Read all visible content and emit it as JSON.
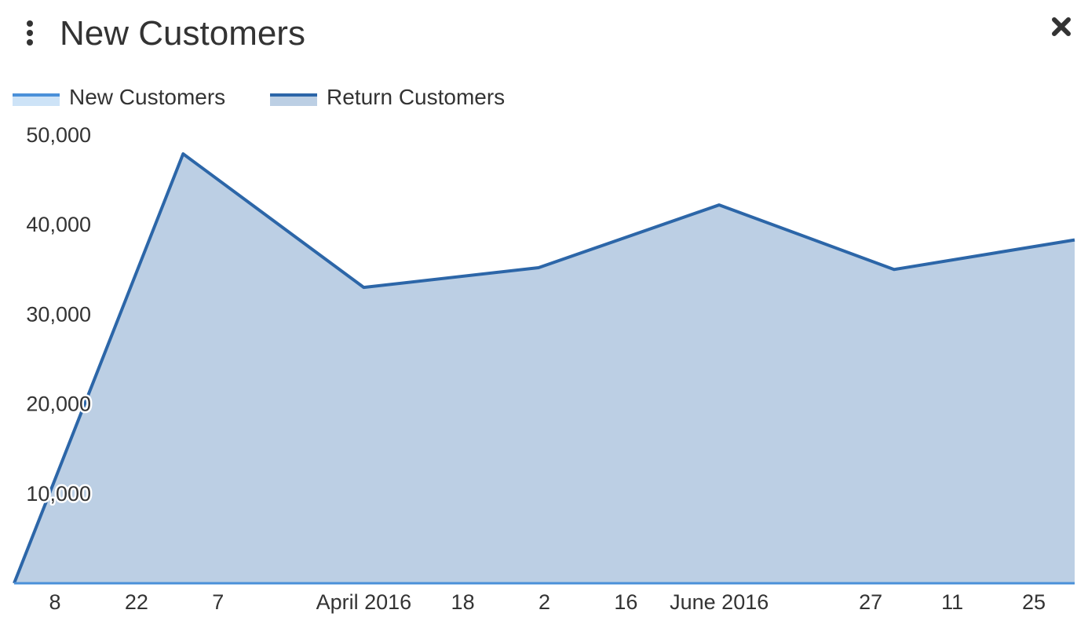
{
  "header": {
    "title": "New Customers",
    "menu_icon": "vertical-ellipsis-icon",
    "close_icon": "close-x-icon"
  },
  "colors": {
    "new_customers_line": "#4a90d9",
    "new_customers_fill": "#cde3f7",
    "return_customers_line": "#2c66a8",
    "return_customers_fill": "#bccfe4",
    "axis": "#4a90d9"
  },
  "chart_data": {
    "type": "area",
    "title": "New Customers",
    "xlabel": "",
    "ylabel": "",
    "ylim": [
      0,
      50000
    ],
    "yticks": [
      "10,000",
      "20,000",
      "30,000",
      "40,000",
      "50,000"
    ],
    "ytick_values": [
      10000,
      20000,
      30000,
      40000,
      50000
    ],
    "legend_position": "top-left",
    "x_tick_labels": [
      "8",
      "22",
      "7",
      "April 2016",
      "18",
      "2",
      "16",
      "June 2016",
      "27",
      "11",
      "25"
    ],
    "x_tick_dates": [
      "2016-02-08",
      "2016-02-22",
      "2016-03-07",
      "2016-04-01",
      "2016-04-18",
      "2016-05-02",
      "2016-05-16",
      "2016-06-01",
      "2016-06-27",
      "2016-07-11",
      "2016-07-25"
    ],
    "x_range": [
      "2016-02-01",
      "2016-08-01"
    ],
    "series": [
      {
        "name": "New Customers",
        "x": [
          "2016-02-01",
          "2016-08-01"
        ],
        "values": [
          0,
          0
        ]
      },
      {
        "name": "Return Customers",
        "x": [
          "2016-02-01",
          "2016-03-01",
          "2016-04-01",
          "2016-05-01",
          "2016-06-01",
          "2016-07-01",
          "2016-08-01"
        ],
        "values": [
          0,
          47900,
          33000,
          35200,
          42200,
          35000,
          38300
        ]
      }
    ]
  }
}
